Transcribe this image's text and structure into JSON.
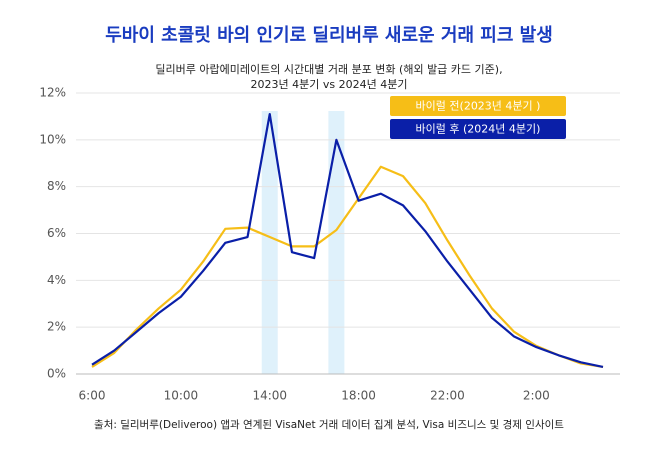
{
  "chart_data": {
    "type": "line",
    "title": "두바이 초콜릿 바의 인기로 딜리버루 새로운 거래 피크 발생",
    "subtitle": [
      "딜리버루 아랍에미레이트의 시간대별 거래 분포 변화 (해외 발급 카드 기준),",
      "2023년 4분기 vs 2024년 4분기"
    ],
    "source": "출처: 딜리버루(Deliveroo) 앱과 연계된 VisaNet 거래 데이터 집계 분석, Visa 비즈니스 및 경제 인사이트",
    "categories": [
      "6:00",
      null,
      null,
      null,
      "10:00",
      null,
      null,
      null,
      "14:00",
      null,
      null,
      null,
      "18:00",
      null,
      null,
      null,
      "22:00",
      null,
      null,
      null,
      "2:00",
      null,
      null,
      null
    ],
    "series": [
      {
        "name": "바이럴 전(2023년 4분기 )",
        "color": "#f6be17",
        "values": [
          0.3,
          0.9,
          1.9,
          2.8,
          3.6,
          4.8,
          6.2,
          6.25,
          5.85,
          5.45,
          5.45,
          6.15,
          7.5,
          8.85,
          8.45,
          7.3,
          5.7,
          4.2,
          2.8,
          1.8,
          1.2,
          0.8,
          0.45,
          0.3
        ]
      },
      {
        "name": "바이럴 후 (2024년 4분기)",
        "color": "#0a1fa8",
        "values": [
          0.4,
          1.0,
          1.8,
          2.6,
          3.3,
          4.4,
          5.6,
          5.85,
          11.1,
          5.2,
          4.95,
          10.0,
          7.4,
          7.7,
          7.2,
          6.1,
          4.8,
          3.6,
          2.4,
          1.6,
          1.15,
          0.8,
          0.5,
          0.3
        ]
      }
    ],
    "ylim": [
      0,
      12
    ],
    "yticks": [
      {
        "value": 0,
        "label": "0%"
      },
      {
        "value": 2,
        "label": "2%"
      },
      {
        "value": 4,
        "label": "4%"
      },
      {
        "value": 6,
        "label": "6%"
      },
      {
        "value": 8,
        "label": "8%"
      },
      {
        "value": 10,
        "label": "10%"
      },
      {
        "value": 12,
        "label": "12%"
      }
    ],
    "grid": true
  }
}
